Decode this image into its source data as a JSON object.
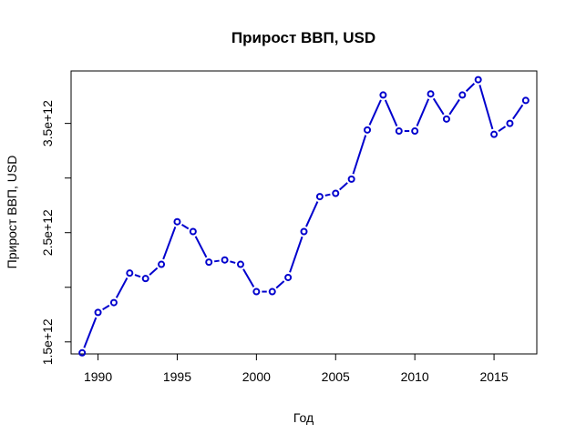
{
  "chart_data": {
    "type": "line",
    "title": "Прирост ВВП, USD",
    "xlabel": "Год",
    "ylabel": "Прирост ВВП, USD",
    "xlim": [
      1988.3,
      2017.7
    ],
    "ylim": [
      1390000000000.0,
      3980000000000.0
    ],
    "x_ticks": [
      1990,
      1995,
      2000,
      2005,
      2010,
      2015
    ],
    "x_tick_labels": [
      "1990",
      "1995",
      "2000",
      "2005",
      "2010",
      "2015"
    ],
    "y_ticks": [
      1500000000000.0,
      2500000000000.0,
      3500000000000.0
    ],
    "y_tick_labels": [
      "1.5e+12",
      "2.5e+12",
      "3.5e+12"
    ],
    "y_minor_ticks": [
      2000000000000.0,
      3000000000000.0
    ],
    "grid": false,
    "line_color": "#0000CD",
    "series": [
      {
        "x": [
          1989,
          1990,
          1991,
          1992,
          1993,
          1994,
          1995,
          1996,
          1997,
          1998,
          1999,
          2000,
          2001,
          2002,
          2003,
          2004,
          2005,
          2006,
          2007,
          2008,
          2009,
          2010,
          2011,
          2012,
          2013,
          2014,
          2015,
          2016,
          2017
        ],
        "values": [
          1400000000000.0,
          1770000000000.0,
          1860000000000.0,
          2130000000000.0,
          2080000000000.0,
          2210000000000.0,
          2600000000000.0,
          2510000000000.0,
          2230000000000.0,
          2250000000000.0,
          2210000000000.0,
          1960000000000.0,
          1960000000000.0,
          2090000000000.0,
          2510000000000.0,
          2830000000000.0,
          2860000000000.0,
          2990000000000.0,
          3440000000000.0,
          3760000000000.0,
          3430000000000.0,
          3430000000000.0,
          3770000000000.0,
          3540000000000.0,
          3760000000000.0,
          3900000000000.0,
          3400000000000.0,
          3500000000000.0,
          3710000000000.0
        ]
      }
    ]
  }
}
